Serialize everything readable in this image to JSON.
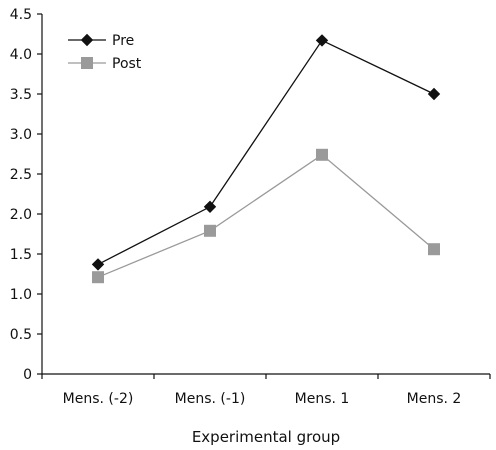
{
  "chart_data": {
    "type": "line",
    "title": "",
    "xlabel": "Experimental group",
    "ylabel": "",
    "categories": [
      "Mens. (-2)",
      "Mens. (-1)",
      "Mens. 1",
      "Mens. 2"
    ],
    "ylim": [
      0,
      4.5
    ],
    "yticks": [
      "0",
      "0.5",
      "1.0",
      "1.5",
      "2.0",
      "2.5",
      "3.0",
      "3.5",
      "4.0",
      "4.5"
    ],
    "grid": false,
    "legend_position": "top-left",
    "series": [
      {
        "name": "Pre",
        "values": [
          1.37,
          2.09,
          4.17,
          3.5
        ],
        "color": "#111111",
        "marker": "diamond"
      },
      {
        "name": "Post",
        "values": [
          1.21,
          1.79,
          2.74,
          1.56
        ],
        "color": "#9a9a9a",
        "marker": "square"
      }
    ]
  }
}
